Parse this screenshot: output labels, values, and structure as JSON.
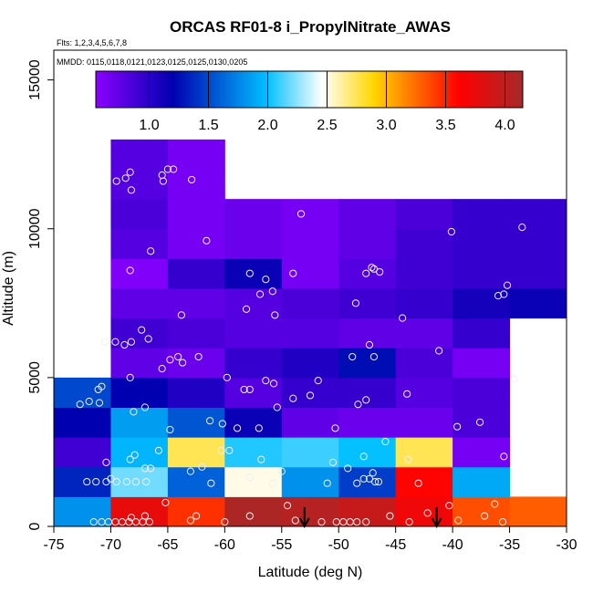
{
  "chart_data": {
    "type": "heatmap",
    "title": "ORCAS RF01-8 i_PropylNitrate_AWAS",
    "xlabel": "Latitude (deg N)",
    "ylabel": "Altitude (m)",
    "flights_note": "Flts: 1,2,3,4,5,6,7,8",
    "dates_note": "MMDD: 0115,0118,0121,0123,0125,0125,0130,0205",
    "xlim": [
      -75,
      -30
    ],
    "ylim": [
      0,
      16000
    ],
    "x_ticks": [
      -75,
      -70,
      -65,
      -60,
      -55,
      -50,
      -45,
      -40,
      -35,
      -30
    ],
    "x_tick_labels": [
      "-75",
      "-70",
      "-65",
      "-60",
      "-55",
      "-50",
      "-45",
      "-40",
      "-35",
      "-30"
    ],
    "y_ticks": [
      0,
      5000,
      10000,
      15000
    ],
    "y_tick_labels": [
      "0",
      "5000",
      "10000",
      "15000"
    ],
    "colorbar": {
      "range": [
        0.55,
        4.15
      ],
      "ticks": [
        1.0,
        1.5,
        2.0,
        2.5,
        3.0,
        3.5,
        4.0
      ],
      "tick_labels": [
        "1.0",
        "1.5",
        "2.0",
        "2.5",
        "3.0",
        "3.5",
        "4.0"
      ],
      "stops": [
        "#8B00FF",
        "#0000B0",
        "#00BFFF",
        "#FFFFFF",
        "#FFD700",
        "#FF0000",
        "#A52A2A"
      ],
      "stop_positions": [
        0.0,
        0.18,
        0.4,
        0.53,
        0.65,
        0.85,
        1.0
      ]
    },
    "cell_width_deg": 5,
    "cell_height_m": 1000,
    "cells": [
      {
        "x": -75,
        "y": 0,
        "v": 1.8
      },
      {
        "x": -70,
        "y": 0,
        "v": 3.75
      },
      {
        "x": -65,
        "y": 0,
        "v": 3.45
      },
      {
        "x": -60,
        "y": 0,
        "v": 4.1
      },
      {
        "x": -55,
        "y": 0,
        "v": 4.05
      },
      {
        "x": -50,
        "y": 0,
        "v": 3.95
      },
      {
        "x": -45,
        "y": 0,
        "v": 3.7
      },
      {
        "x": -40,
        "y": 0,
        "v": 3.35
      },
      {
        "x": -35,
        "y": 0,
        "v": 3.3
      },
      {
        "x": -75,
        "y": 1000,
        "v": 1.35
      },
      {
        "x": -70,
        "y": 1000,
        "v": 2.2
      },
      {
        "x": -65,
        "y": 1000,
        "v": 1.6
      },
      {
        "x": -60,
        "y": 1000,
        "v": 2.5
      },
      {
        "x": -55,
        "y": 1000,
        "v": 1.8
      },
      {
        "x": -50,
        "y": 1000,
        "v": 1.45
      },
      {
        "x": -45,
        "y": 1000,
        "v": 3.6
      },
      {
        "x": -40,
        "y": 1000,
        "v": 1.9
      },
      {
        "x": -75,
        "y": 2000,
        "v": 0.9
      },
      {
        "x": -70,
        "y": 2000,
        "v": 1.95
      },
      {
        "x": -65,
        "y": 2000,
        "v": 2.75
      },
      {
        "x": -60,
        "y": 2000,
        "v": 2.05
      },
      {
        "x": -55,
        "y": 2000,
        "v": 2.1
      },
      {
        "x": -50,
        "y": 2000,
        "v": 2.0
      },
      {
        "x": -45,
        "y": 2000,
        "v": 2.75
      },
      {
        "x": -40,
        "y": 2000,
        "v": 0.65
      },
      {
        "x": -75,
        "y": 3000,
        "v": 1.2
      },
      {
        "x": -70,
        "y": 3000,
        "v": 1.85
      },
      {
        "x": -65,
        "y": 3000,
        "v": 1.55
      },
      {
        "x": -60,
        "y": 3000,
        "v": 1.15
      },
      {
        "x": -55,
        "y": 3000,
        "v": 0.75
      },
      {
        "x": -50,
        "y": 3000,
        "v": 0.7
      },
      {
        "x": -45,
        "y": 3000,
        "v": 0.7
      },
      {
        "x": -40,
        "y": 3000,
        "v": 0.85
      },
      {
        "x": -75,
        "y": 4000,
        "v": 1.5
      },
      {
        "x": -70,
        "y": 4000,
        "v": 1.2
      },
      {
        "x": -65,
        "y": 4000,
        "v": 1.05
      },
      {
        "x": -60,
        "y": 4000,
        "v": 0.8
      },
      {
        "x": -55,
        "y": 4000,
        "v": 0.95
      },
      {
        "x": -50,
        "y": 4000,
        "v": 0.95
      },
      {
        "x": -45,
        "y": 4000,
        "v": 0.8
      },
      {
        "x": -40,
        "y": 4000,
        "v": 0.85
      },
      {
        "x": -70,
        "y": 5000,
        "v": 0.75
      },
      {
        "x": -65,
        "y": 5000,
        "v": 0.7
      },
      {
        "x": -60,
        "y": 5000,
        "v": 0.95
      },
      {
        "x": -55,
        "y": 5000,
        "v": 1.05
      },
      {
        "x": -50,
        "y": 5000,
        "v": 1.25
      },
      {
        "x": -45,
        "y": 5000,
        "v": 0.85
      },
      {
        "x": -40,
        "y": 5000,
        "v": 0.65
      },
      {
        "x": -70,
        "y": 6000,
        "v": 0.9
      },
      {
        "x": -65,
        "y": 6000,
        "v": 0.85
      },
      {
        "x": -60,
        "y": 6000,
        "v": 0.8
      },
      {
        "x": -55,
        "y": 6000,
        "v": 0.8
      },
      {
        "x": -50,
        "y": 6000,
        "v": 0.75
      },
      {
        "x": -45,
        "y": 6000,
        "v": 0.75
      },
      {
        "x": -40,
        "y": 6000,
        "v": 0.95
      },
      {
        "x": -70,
        "y": 7000,
        "v": 0.75
      },
      {
        "x": -65,
        "y": 7000,
        "v": 0.75
      },
      {
        "x": -60,
        "y": 7000,
        "v": 0.8
      },
      {
        "x": -55,
        "y": 7000,
        "v": 0.85
      },
      {
        "x": -50,
        "y": 7000,
        "v": 0.9
      },
      {
        "x": -45,
        "y": 7000,
        "v": 0.95
      },
      {
        "x": -40,
        "y": 7000,
        "v": 1.1
      },
      {
        "x": -35,
        "y": 7000,
        "v": 1.15
      },
      {
        "x": -70,
        "y": 8000,
        "v": 0.6
      },
      {
        "x": -65,
        "y": 8000,
        "v": 0.95
      },
      {
        "x": -60,
        "y": 8000,
        "v": 1.15
      },
      {
        "x": -55,
        "y": 8000,
        "v": 0.65
      },
      {
        "x": -50,
        "y": 8000,
        "v": 0.8
      },
      {
        "x": -45,
        "y": 8000,
        "v": 0.9
      },
      {
        "x": -40,
        "y": 8000,
        "v": 0.95
      },
      {
        "x": -35,
        "y": 8000,
        "v": 0.95
      },
      {
        "x": -70,
        "y": 9000,
        "v": 0.8
      },
      {
        "x": -65,
        "y": 9000,
        "v": 0.65
      },
      {
        "x": -60,
        "y": 9000,
        "v": 0.7
      },
      {
        "x": -55,
        "y": 9000,
        "v": 0.65
      },
      {
        "x": -50,
        "y": 9000,
        "v": 0.75
      },
      {
        "x": -45,
        "y": 9000,
        "v": 0.9
      },
      {
        "x": -40,
        "y": 9000,
        "v": 0.95
      },
      {
        "x": -35,
        "y": 9000,
        "v": 0.95
      },
      {
        "x": -70,
        "y": 10000,
        "v": 0.85
      },
      {
        "x": -65,
        "y": 10000,
        "v": 0.65
      },
      {
        "x": -60,
        "y": 10000,
        "v": 0.7
      },
      {
        "x": -55,
        "y": 10000,
        "v": 0.65
      },
      {
        "x": -50,
        "y": 10000,
        "v": 0.75
      },
      {
        "x": -45,
        "y": 10000,
        "v": 0.85
      },
      {
        "x": -40,
        "y": 10000,
        "v": 0.95
      },
      {
        "x": -35,
        "y": 10000,
        "v": 0.95
      },
      {
        "x": -70,
        "y": 11000,
        "v": 0.8
      },
      {
        "x": -65,
        "y": 11000,
        "v": 0.65
      },
      {
        "x": -70,
        "y": 12000,
        "v": 0.8
      },
      {
        "x": -65,
        "y": 12000,
        "v": 0.65
      }
    ],
    "samples": [
      [
        -71.5,
        150
      ],
      [
        -70.8,
        150
      ],
      [
        -70.2,
        150
      ],
      [
        -69.6,
        150
      ],
      [
        -69.0,
        150
      ],
      [
        -68.4,
        150
      ],
      [
        -67.8,
        150
      ],
      [
        -67.2,
        150
      ],
      [
        -66.6,
        150
      ],
      [
        -68.2,
        300
      ],
      [
        -67.0,
        350
      ],
      [
        -65.2,
        800
      ],
      [
        -63.0,
        200
      ],
      [
        -62.5,
        350
      ],
      [
        -60.0,
        150
      ],
      [
        -57.8,
        350
      ],
      [
        -54.5,
        700
      ],
      [
        -53.8,
        200
      ],
      [
        -51.5,
        150
      ],
      [
        -50.2,
        150
      ],
      [
        -49.6,
        150
      ],
      [
        -49.0,
        150
      ],
      [
        -48.4,
        150
      ],
      [
        -47.6,
        150
      ],
      [
        -45.5,
        350
      ],
      [
        -43.8,
        150
      ],
      [
        -42.2,
        450
      ],
      [
        -40.3,
        700
      ],
      [
        -39.5,
        200
      ],
      [
        -37.2,
        350
      ],
      [
        -36.3,
        750
      ],
      [
        -35.6,
        150
      ],
      [
        -72.1,
        1500
      ],
      [
        -71.3,
        1500
      ],
      [
        -70.4,
        1500
      ],
      [
        -69.5,
        1500
      ],
      [
        -68.6,
        1500
      ],
      [
        -67.8,
        1500
      ],
      [
        -66.9,
        1500
      ],
      [
        -70.0,
        1600
      ],
      [
        -68.3,
        2250
      ],
      [
        -67.0,
        1950
      ],
      [
        -66.5,
        1950
      ],
      [
        -63.0,
        1850
      ],
      [
        -61.2,
        1450
      ],
      [
        -57.8,
        1650
      ],
      [
        -55.8,
        1450
      ],
      [
        -55.0,
        1850
      ],
      [
        -51.0,
        1450
      ],
      [
        -49.2,
        1950
      ],
      [
        -48.4,
        1450
      ],
      [
        -47.8,
        1600
      ],
      [
        -47.3,
        1600
      ],
      [
        -46.8,
        1500
      ],
      [
        -46.5,
        1500
      ],
      [
        -47.0,
        1800
      ],
      [
        -43.0,
        1450
      ],
      [
        -70.4,
        2150
      ],
      [
        -67.9,
        2400
      ],
      [
        -65.8,
        2550
      ],
      [
        -62.0,
        2000
      ],
      [
        -60.3,
        2550
      ],
      [
        -59.6,
        2550
      ],
      [
        -56.8,
        2250
      ],
      [
        -50.5,
        2150
      ],
      [
        -47.8,
        2350
      ],
      [
        -45.9,
        2850
      ],
      [
        -43.9,
        2250
      ],
      [
        -35.5,
        2350
      ],
      [
        -72.7,
        4100
      ],
      [
        -71.9,
        4200
      ],
      [
        -71.0,
        4150
      ],
      [
        -68.0,
        3850
      ],
      [
        -67.0,
        4000
      ],
      [
        -64.8,
        3250
      ],
      [
        -61.3,
        3550
      ],
      [
        -60.2,
        3450
      ],
      [
        -58.9,
        3300
      ],
      [
        -57.0,
        3300
      ],
      [
        -55.4,
        4000
      ],
      [
        -52.5,
        4400
      ],
      [
        -50.3,
        3300
      ],
      [
        -48.3,
        4100
      ],
      [
        -47.6,
        4250
      ],
      [
        -44.0,
        4450
      ],
      [
        -39.6,
        3350
      ],
      [
        -37.6,
        3500
      ],
      [
        -71.1,
        4600
      ],
      [
        -70.8,
        4700
      ],
      [
        -68.3,
        5000
      ],
      [
        -65.5,
        5300
      ],
      [
        -64.8,
        5600
      ],
      [
        -63.7,
        5500
      ],
      [
        -62.3,
        5700
      ],
      [
        -59.8,
        5000
      ],
      [
        -58.3,
        4600
      ],
      [
        -57.8,
        4600
      ],
      [
        -56.4,
        4900
      ],
      [
        -55.7,
        4800
      ],
      [
        -54.0,
        4300
      ],
      [
        -51.8,
        4900
      ],
      [
        -48.8,
        5700
      ],
      [
        -47.3,
        6100
      ],
      [
        -46.9,
        5700
      ],
      [
        -41.2,
        5900
      ],
      [
        -34.6,
        4950
      ],
      [
        -70.5,
        6200
      ],
      [
        -69.6,
        6200
      ],
      [
        -68.8,
        6100
      ],
      [
        -68.2,
        6200
      ],
      [
        -67.3,
        6600
      ],
      [
        -66.7,
        6300
      ],
      [
        -64.1,
        5700
      ],
      [
        -63.8,
        7100
      ],
      [
        -58.1,
        7300
      ],
      [
        -56.9,
        7800
      ],
      [
        -55.8,
        7900
      ],
      [
        -56.4,
        8300
      ],
      [
        -55.6,
        7100
      ],
      [
        -48.5,
        7500
      ],
      [
        -44.4,
        7000
      ],
      [
        -36.0,
        7750
      ],
      [
        -35.5,
        7800
      ],
      [
        -68.3,
        8600
      ],
      [
        -57.8,
        8500
      ],
      [
        -54.0,
        8500
      ],
      [
        -47.6,
        8500
      ],
      [
        -47.1,
        8700
      ],
      [
        -46.9,
        8650
      ],
      [
        -46.4,
        8550
      ],
      [
        -35.2,
        8100
      ],
      [
        -66.5,
        9250
      ],
      [
        -61.6,
        9600
      ],
      [
        -53.3,
        10500
      ],
      [
        -40.1,
        9900
      ],
      [
        -33.9,
        10050
      ],
      [
        -69.5,
        11600
      ],
      [
        -68.7,
        11700
      ],
      [
        -68.3,
        11900
      ],
      [
        -68.2,
        11300
      ],
      [
        -65.5,
        11800
      ],
      [
        -65.0,
        12000
      ],
      [
        -64.5,
        12000
      ],
      [
        -62.9,
        11650
      ],
      [
        -65.4,
        11600
      ]
    ],
    "arrows_lat": [
      -53.0,
      -41.4
    ]
  }
}
